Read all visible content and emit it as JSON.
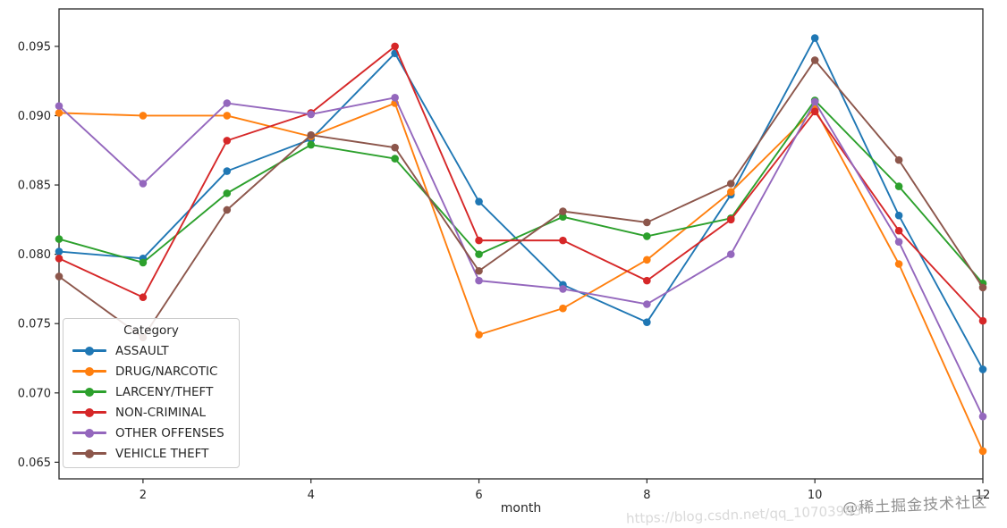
{
  "watermark": {
    "line1": "@稀土掘金技术社区",
    "line2": "https://blog.csdn.net/qq_10703983"
  },
  "chart_data": {
    "type": "line",
    "title": "",
    "xlabel": "month",
    "ylabel": "",
    "legend_title": "Category",
    "legend_position": "lower left",
    "grid": false,
    "x": [
      1,
      2,
      3,
      4,
      5,
      6,
      7,
      8,
      9,
      10,
      11,
      12
    ],
    "xticks": [
      2,
      4,
      6,
      8,
      10,
      12
    ],
    "yticks": [
      0.065,
      0.07,
      0.075,
      0.08,
      0.085,
      0.09,
      0.095
    ],
    "xlim": [
      1,
      12
    ],
    "ylim": [
      0.0638,
      0.0977
    ],
    "series": [
      {
        "name": "ASSAULT",
        "color": "#1f77b4",
        "values": [
          0.0802,
          0.0797,
          0.086,
          0.0883,
          0.0945,
          0.0838,
          0.0778,
          0.0751,
          0.0843,
          0.0956,
          0.0828,
          0.0717
        ]
      },
      {
        "name": "DRUG/NARCOTIC",
        "color": "#ff7f0e",
        "values": [
          0.0902,
          0.09,
          0.09,
          0.0885,
          0.0909,
          0.0742,
          0.0761,
          0.0796,
          0.0845,
          0.0905,
          0.0793,
          0.0658
        ]
      },
      {
        "name": "LARCENY/THEFT",
        "color": "#2ca02c",
        "values": [
          0.0811,
          0.0794,
          0.0844,
          0.0879,
          0.0869,
          0.08,
          0.0827,
          0.0813,
          0.0826,
          0.0911,
          0.0849,
          0.0779
        ]
      },
      {
        "name": "NON-CRIMINAL",
        "color": "#d62728",
        "values": [
          0.0797,
          0.0769,
          0.0882,
          0.0902,
          0.095,
          0.081,
          0.081,
          0.0781,
          0.0825,
          0.0903,
          0.0817,
          0.0752
        ]
      },
      {
        "name": "OTHER OFFENSES",
        "color": "#9467bd",
        "values": [
          0.0907,
          0.0851,
          0.0909,
          0.0901,
          0.0913,
          0.0781,
          0.0775,
          0.0764,
          0.08,
          0.091,
          0.0809,
          0.0683
        ]
      },
      {
        "name": "VEHICLE THEFT",
        "color": "#8c564b",
        "values": [
          0.0784,
          0.074,
          0.0832,
          0.0886,
          0.0877,
          0.0788,
          0.0831,
          0.0823,
          0.0851,
          0.094,
          0.0868,
          0.0776
        ]
      }
    ]
  }
}
